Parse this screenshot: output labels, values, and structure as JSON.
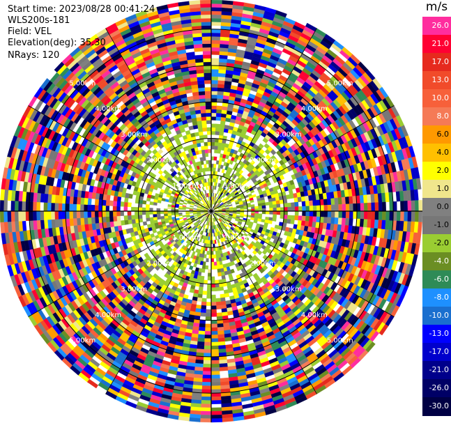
{
  "header": {
    "start_time": "Start time: 2023/08/28 00:41:24",
    "instrument": "WLS200s-181",
    "field": "Field: VEL",
    "elevation": "Elevation(deg): 35.30",
    "nrays": "NRays: 120"
  },
  "colorbar": {
    "unit": "m/s",
    "levels": [
      {
        "label": "26.0",
        "color": "#ff2d9e"
      },
      {
        "label": "21.0",
        "color": "#ff0033"
      },
      {
        "label": "17.0",
        "color": "#e62a1e"
      },
      {
        "label": "13.0",
        "color": "#f14b2a"
      },
      {
        "label": "10.0",
        "color": "#f7603a"
      },
      {
        "label": "8.0",
        "color": "#f57a56"
      },
      {
        "label": "6.0",
        "color": "#ff9900"
      },
      {
        "label": "4.0",
        "color": "#ffc000"
      },
      {
        "label": "2.0",
        "color": "#ffff00"
      },
      {
        "label": "1.0",
        "color": "#f0e68c"
      },
      {
        "label": "0.0",
        "color": "#808080"
      },
      {
        "label": "-1.0",
        "color": "#777777"
      },
      {
        "label": "-2.0",
        "color": "#9acd32"
      },
      {
        "label": "-4.0",
        "color": "#6b8e23"
      },
      {
        "label": "-6.0",
        "color": "#2e8b57"
      },
      {
        "label": "-8.0",
        "color": "#1e90ff"
      },
      {
        "label": "-10.0",
        "color": "#1a6fcf"
      },
      {
        "label": "-13.0",
        "color": "#0000ff"
      },
      {
        "label": "-17.0",
        "color": "#0000cc"
      },
      {
        "label": "-21.0",
        "color": "#00008b"
      },
      {
        "label": "-26.0",
        "color": "#000066"
      },
      {
        "label": "-30.0",
        "color": "#000044"
      }
    ]
  },
  "chart_data": {
    "type": "heatmap",
    "title": "",
    "field": "VEL",
    "units": "m/s",
    "nrays": 120,
    "elevation_deg": 35.3,
    "range_ring_labels": [
      "1.00km",
      "2.00km",
      "3.00km",
      "4.00km",
      "5.00km"
    ],
    "range_rings_km": [
      1.0,
      2.0,
      3.0,
      4.0,
      5.0
    ],
    "max_range_km": 5.8,
    "grid": true,
    "colorbar_placement": "right"
  }
}
